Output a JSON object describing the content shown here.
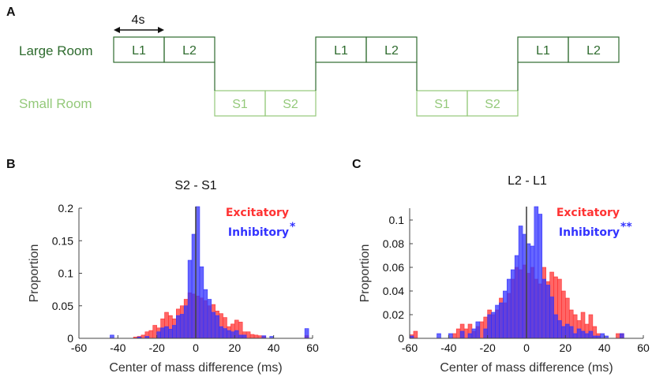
{
  "panelA": {
    "letter": "A",
    "duration_label": "4s",
    "large_label": "Large Room",
    "small_label": "Small Room",
    "large_color": "#2e6b2e",
    "small_color": "#94c97a",
    "segments": [
      "L1",
      "L2",
      "S1",
      "S2",
      "L1",
      "L2",
      "S1",
      "S2",
      "L1",
      "L2"
    ]
  },
  "chart_data": [
    {
      "type": "bar",
      "panel": "B",
      "title": "S2 - S1",
      "xlabel": "Center of mass difference (ms)",
      "ylabel": "Proportion",
      "xlim": [
        -60,
        60
      ],
      "ylim": [
        0,
        0.2
      ],
      "xticks": [
        "-60",
        "-40",
        "-20",
        "0",
        "20",
        "40",
        "60"
      ],
      "yticks": [
        "0",
        "0.05",
        "0.1",
        "0.15",
        "0.2"
      ],
      "bin_width": 2,
      "vline": 0,
      "legend_position": "top-right",
      "series": [
        {
          "name": "Excitatory",
          "color": "#ff3333",
          "bin_starts": [
            -32,
            -30,
            -28,
            -26,
            -24,
            -22,
            -20,
            -18,
            -16,
            -14,
            -12,
            -10,
            -8,
            -6,
            -4,
            -2,
            0,
            2,
            4,
            6,
            8,
            10,
            12,
            14,
            16,
            18,
            20,
            22,
            24,
            26,
            28,
            30,
            32,
            34,
            56
          ],
          "values": [
            0.002,
            0.003,
            0.005,
            0.01,
            0.012,
            0.02,
            0.016,
            0.03,
            0.04,
            0.035,
            0.03,
            0.045,
            0.05,
            0.06,
            0.07,
            0.068,
            0.065,
            0.062,
            0.058,
            0.05,
            0.052,
            0.042,
            0.038,
            0.032,
            0.018,
            0.022,
            0.028,
            0.025,
            0.01,
            0.01,
            0.006,
            0.005,
            0.004,
            0.003,
            0.004
          ]
        },
        {
          "name": "Inhibitory",
          "annotation": "*",
          "color": "#3333ff",
          "bin_starts": [
            -44,
            -30,
            -26,
            -20,
            -18,
            -16,
            -14,
            -12,
            -10,
            -8,
            -6,
            -4,
            -2,
            0,
            2,
            4,
            6,
            8,
            10,
            12,
            14,
            16,
            18,
            20,
            22,
            24,
            34,
            38,
            56
          ],
          "values": [
            0.005,
            0.002,
            0.003,
            0.01,
            0.016,
            0.018,
            0.014,
            0.02,
            0.035,
            0.037,
            0.05,
            0.12,
            0.16,
            0.205,
            0.11,
            0.075,
            0.06,
            0.04,
            0.035,
            0.018,
            0.015,
            0.012,
            0.01,
            0.012,
            0.005,
            0.005,
            0.004,
            0.003,
            0.015
          ]
        }
      ]
    },
    {
      "type": "bar",
      "panel": "C",
      "title": "L2 - L1",
      "xlabel": "Center of mass difference (ms)",
      "ylabel": "Proportion",
      "xlim": [
        -60,
        60
      ],
      "ylim": [
        0,
        0.11
      ],
      "xticks": [
        "-60",
        "-40",
        "-20",
        "0",
        "20",
        "40",
        "60"
      ],
      "yticks": [
        "0",
        "0.02",
        "0.04",
        "0.06",
        "0.08",
        "0.1"
      ],
      "bin_width": 2,
      "vline": 0,
      "legend_position": "top-right",
      "series": [
        {
          "name": "Excitatory",
          "color": "#ff3333",
          "bin_starts": [
            -60,
            -58,
            -38,
            -36,
            -34,
            -32,
            -30,
            -28,
            -26,
            -24,
            -22,
            -20,
            -18,
            -16,
            -14,
            -12,
            -10,
            -8,
            -6,
            -4,
            -2,
            0,
            2,
            4,
            6,
            8,
            10,
            12,
            14,
            16,
            18,
            20,
            22,
            24,
            26,
            28,
            30,
            32,
            34,
            36,
            46,
            48
          ],
          "values": [
            0.003,
            0.006,
            0.004,
            0.008,
            0.012,
            0.008,
            0.012,
            0.006,
            0.01,
            0.014,
            0.018,
            0.024,
            0.02,
            0.024,
            0.034,
            0.03,
            0.038,
            0.05,
            0.06,
            0.058,
            0.062,
            0.055,
            0.06,
            0.05,
            0.046,
            0.06,
            0.048,
            0.056,
            0.052,
            0.05,
            0.04,
            0.034,
            0.024,
            0.02,
            0.015,
            0.022,
            0.012,
            0.02,
            0.01,
            0.004,
            0.004,
            0.004
          ]
        },
        {
          "name": "Inhibitory",
          "annotation": "**",
          "color": "#3333ff",
          "bin_starts": [
            -60,
            -46,
            -40,
            -34,
            -30,
            -28,
            -26,
            -22,
            -20,
            -18,
            -16,
            -14,
            -12,
            -10,
            -8,
            -6,
            -4,
            -2,
            0,
            2,
            4,
            6,
            8,
            10,
            12,
            14,
            16,
            18,
            20,
            22,
            24,
            26,
            28,
            30,
            32,
            34,
            36,
            38,
            40,
            48
          ],
          "values": [
            0.002,
            0.004,
            0.004,
            0.006,
            0.004,
            0.008,
            0.014,
            0.008,
            0.02,
            0.022,
            0.028,
            0.03,
            0.04,
            0.05,
            0.058,
            0.07,
            0.095,
            0.088,
            0.08,
            0.078,
            0.112,
            0.105,
            0.05,
            0.045,
            0.035,
            0.02,
            0.015,
            0.01,
            0.012,
            0.01,
            0.004,
            0.008,
            0.006,
            0.004,
            0.006,
            0.002,
            0.002,
            0.004,
            0.002,
            0.004
          ]
        }
      ]
    }
  ]
}
